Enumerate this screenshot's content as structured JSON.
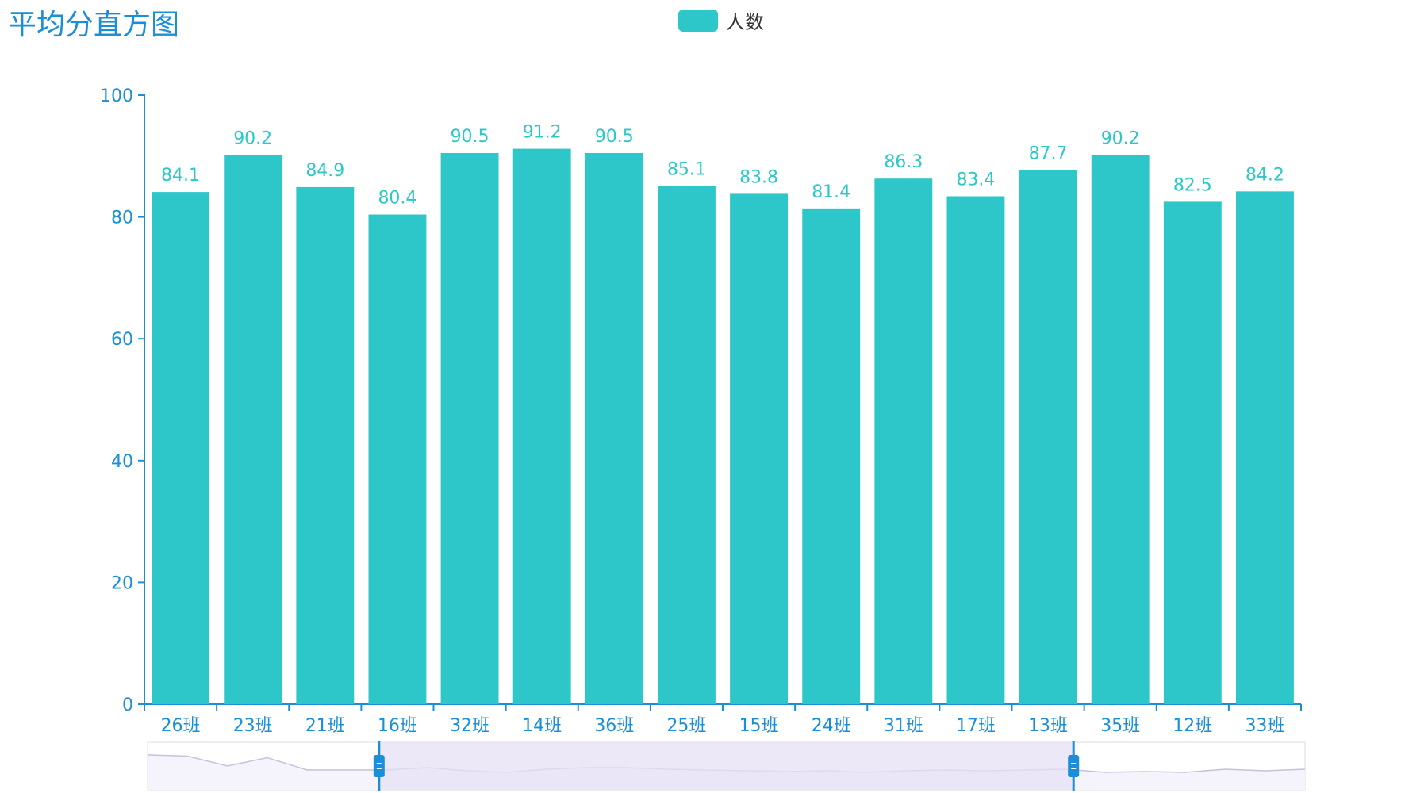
{
  "chart_data": {
    "type": "bar",
    "title": "平均分直方图",
    "categories": [
      "26班",
      "23班",
      "21班",
      "16班",
      "32班",
      "14班",
      "36班",
      "25班",
      "15班",
      "24班",
      "31班",
      "17班",
      "13班",
      "35班",
      "12班",
      "33班"
    ],
    "series": [
      {
        "name": "人数",
        "values": [
          84.1,
          90.2,
          84.9,
          80.4,
          90.5,
          91.2,
          90.5,
          85.1,
          83.8,
          81.4,
          86.3,
          83.4,
          87.7,
          90.2,
          82.5,
          84.2
        ]
      }
    ],
    "yticks": [
      "0",
      "20",
      "40",
      "60",
      "80",
      "100"
    ],
    "ylim": [
      0,
      100
    ],
    "xlabel": "",
    "ylabel": "",
    "grid": false,
    "legend_position": "top-center",
    "data_labels": true,
    "colors": {
      "bar": "#2ec7c9",
      "axis": "#1a8fd8",
      "title": "#1a8fd8",
      "slider_fill": "#e5e0f5",
      "slider_border": "#dddddd"
    },
    "data_zoom": {
      "visible": true,
      "start_fraction": 0.2,
      "end_fraction": 0.8,
      "overview_values": [
        84.1,
        82.5,
        70.0,
        80.5,
        65.0,
        65.0,
        65.0,
        68.0,
        64.0,
        62.0,
        66.0,
        68.0,
        68.0,
        66.0,
        65.0,
        64.0,
        63.0,
        64.0,
        62.0,
        64.0,
        65.0,
        64.0,
        65.0,
        66.0,
        62.0,
        63.0,
        62.0,
        66.0,
        64.0,
        66.0
      ]
    }
  }
}
